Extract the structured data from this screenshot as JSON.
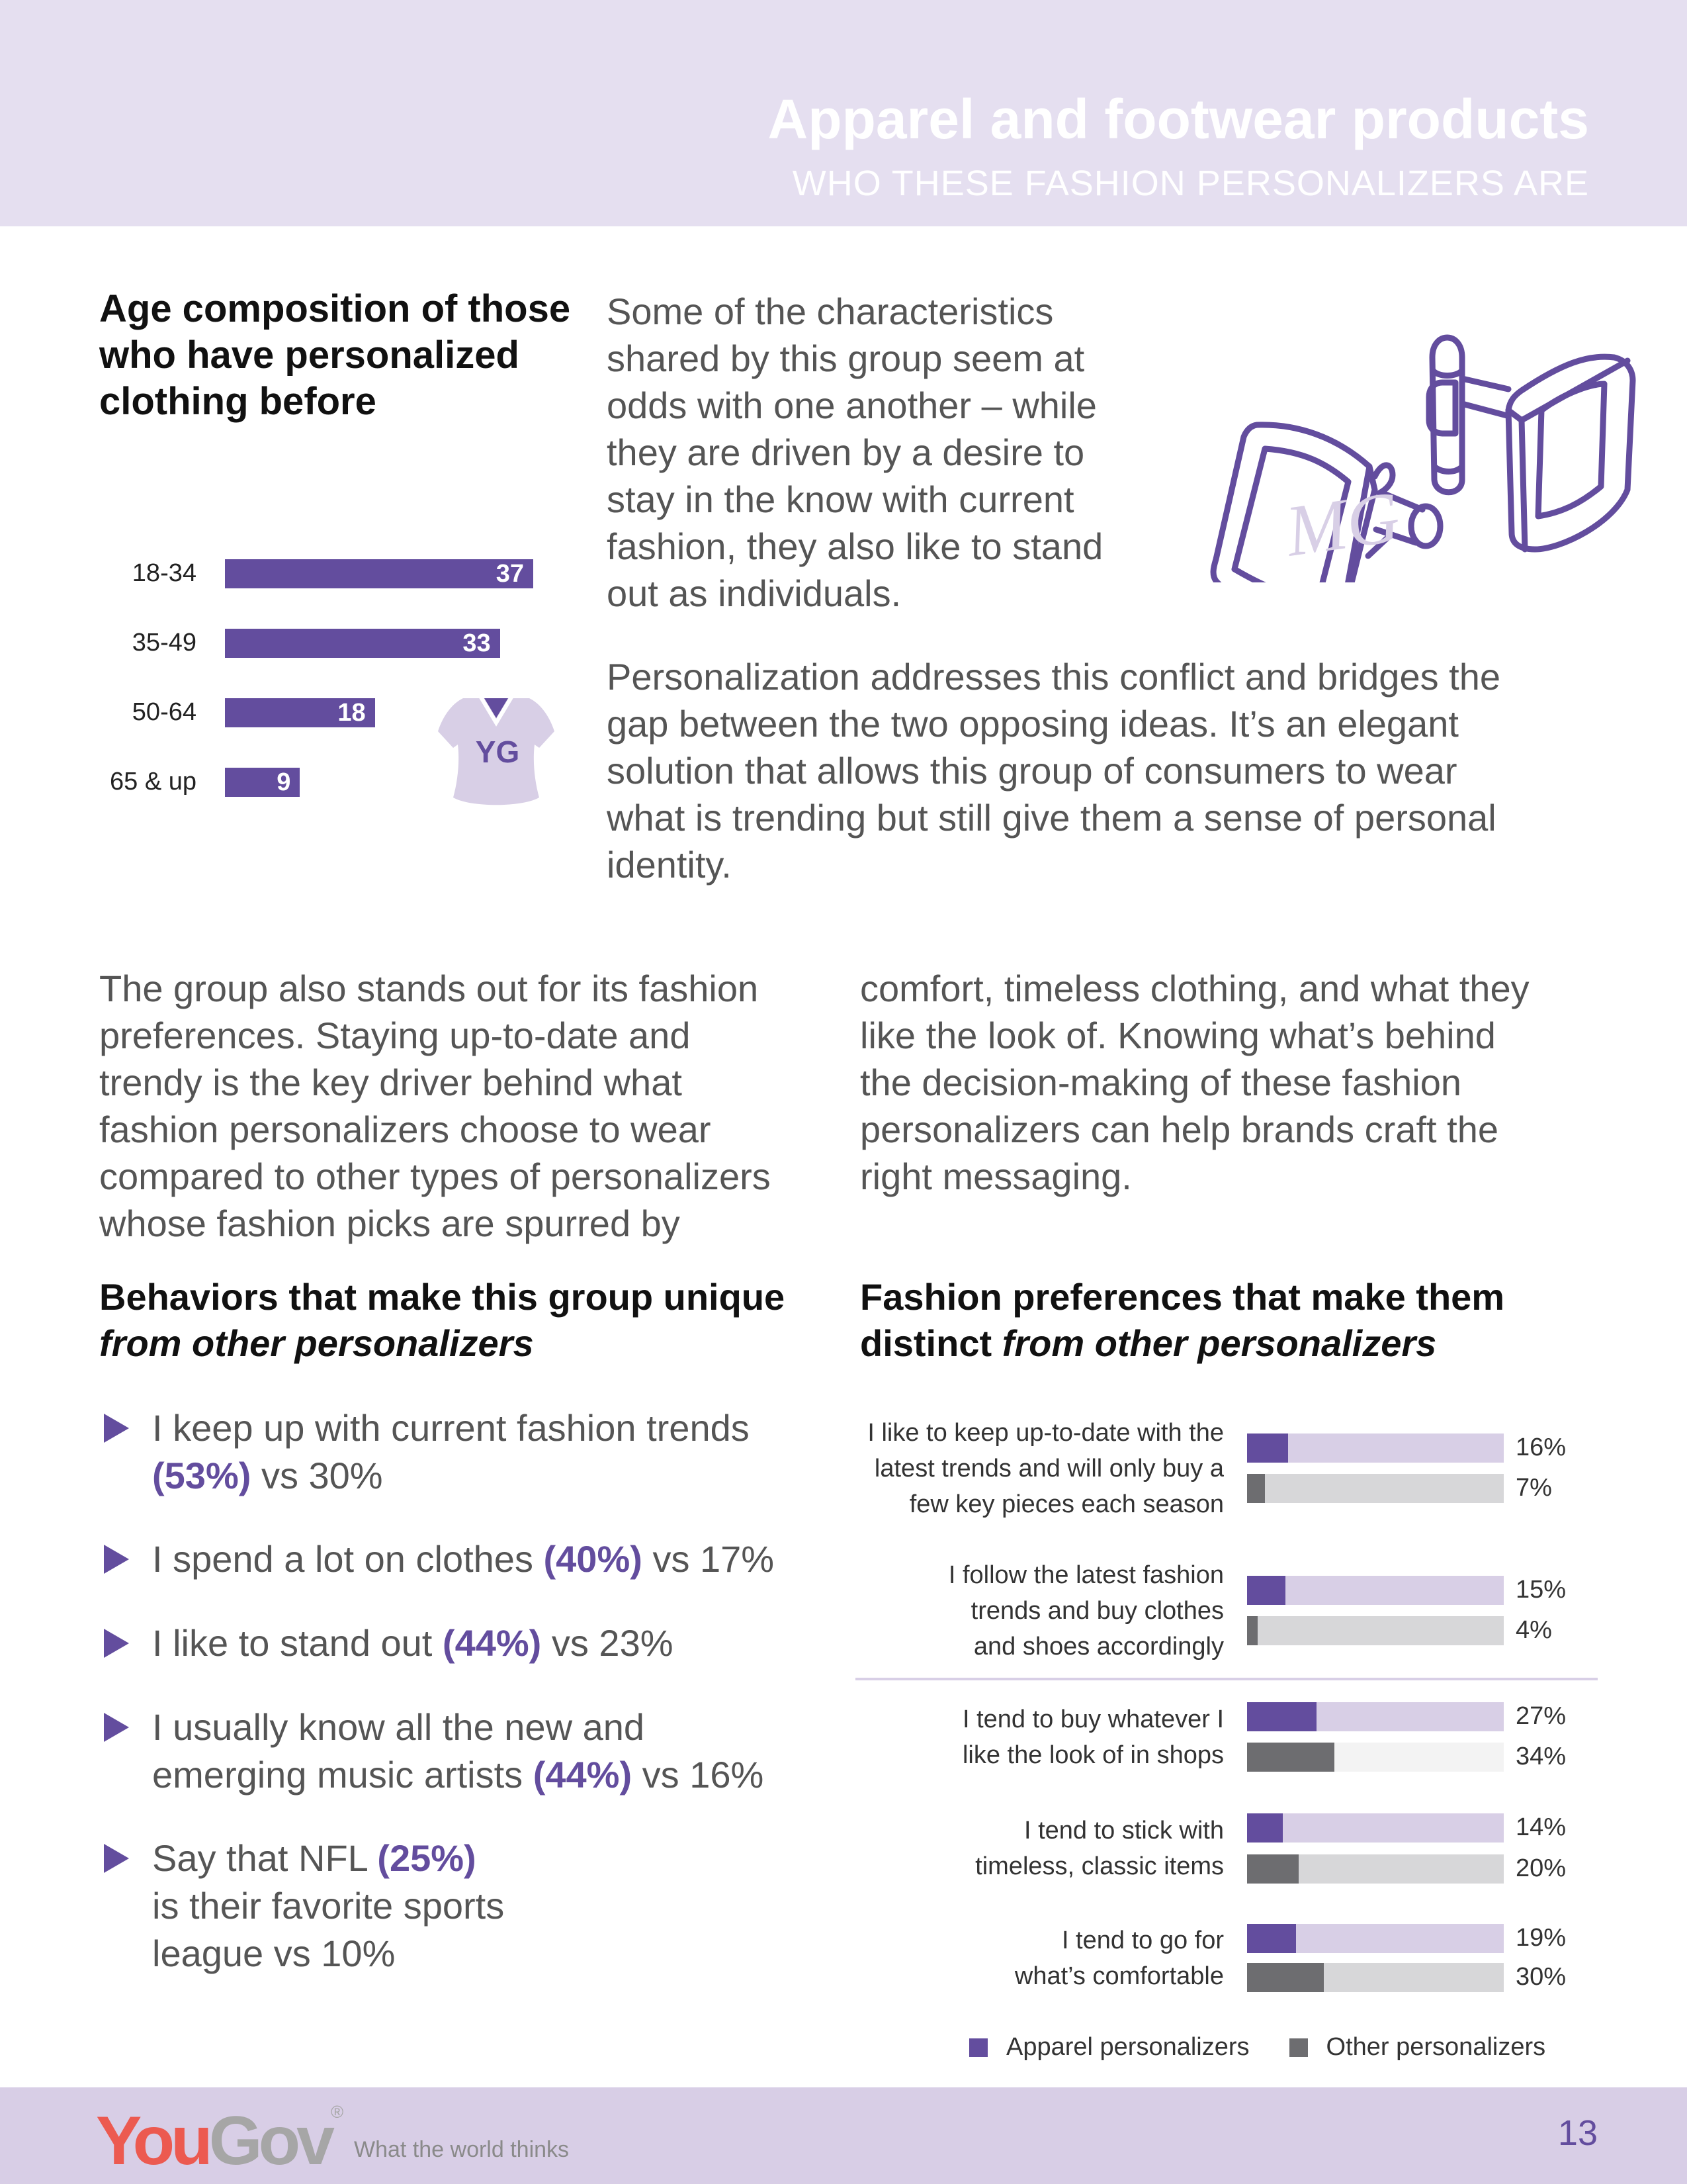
{
  "header": {
    "title": "Apparel and footwear products",
    "subtitle": "WHO THESE FASHION PERSONALIZERS ARE"
  },
  "age_heading": [
    "Age composition of those",
    "who have personalized",
    "clothing before"
  ],
  "intro_paragraph": [
    "Some of the characteristics",
    "shared by this group seem at",
    "odds with one another – while",
    "they are driven by a desire to",
    "stay in the know with current",
    "fashion, they also like to stand",
    "out as individuals."
  ],
  "second_paragraph": [
    "Personalization addresses this conflict and bridges the",
    "gap between the two opposing ideas. It’s an elegant",
    "solution that allows this group of consumers to wear",
    "what is trending but still give them a sense of personal",
    "identity."
  ],
  "left_column": [
    "The group also stands out for its fashion",
    "preferences. Staying up-to-date and",
    "trendy is the key driver behind what",
    "fashion personalizers choose to wear",
    "compared to other types of personalizers",
    "whose fashion picks are spurred by"
  ],
  "right_column": [
    "comfort, timeless clothing, and what they",
    "like the look of. Knowing what’s behind",
    "the decision-making of these fashion",
    "personalizers can help brands craft the",
    "right messaging."
  ],
  "behaviors_heading": {
    "line1": "Behaviors that make this group unique",
    "line2": "from other personalizers"
  },
  "preferences_heading": {
    "line1": "Fashion preferences that make them",
    "line2a": "distinct ",
    "line2b": "from other personalizers"
  },
  "bullets": [
    [
      [
        {
          "t": "I keep up with current fashion trends"
        }
      ],
      [
        {
          "t": "(53%)",
          "e": true
        },
        {
          "t": " vs 30%"
        }
      ]
    ],
    [
      [
        {
          "t": "I spend a lot on clothes "
        },
        {
          "t": "(40%)",
          "e": true
        },
        {
          "t": " vs 17%"
        }
      ]
    ],
    [
      [
        {
          "t": "I like to stand out "
        },
        {
          "t": "(44%)",
          "e": true
        },
        {
          "t": " vs 23%"
        }
      ]
    ],
    [
      [
        {
          "t": "I usually know all the new and"
        }
      ],
      [
        {
          "t": "emerging music artists "
        },
        {
          "t": "(44%)",
          "e": true
        },
        {
          "t": " vs 16%"
        }
      ]
    ],
    [
      [
        {
          "t": "Say that NFL "
        },
        {
          "t": "(25%)",
          "e": true
        }
      ],
      [
        {
          "t": "is their favorite sports"
        }
      ],
      [
        {
          "t": "league vs 10%"
        }
      ]
    ]
  ],
  "tshirt_text": "YG",
  "cufflink_monogram": "MG",
  "colors": {
    "purple": "#634d9e",
    "light_purple": "#d8cfe6",
    "dark_gray": "#6d6d70",
    "light_gray": "#d7d7d9",
    "header_bg": "#e5dff0",
    "footer_bg": "#d8cee6",
    "logo_red": "#ec5a50",
    "logo_gray": "#a6a6a6"
  },
  "chart_data": [
    {
      "type": "bar",
      "orientation": "horizontal",
      "categories": [
        "18-34",
        "35-49",
        "50-64",
        "65 & up"
      ],
      "values": [
        37,
        33,
        18,
        9
      ],
      "data_labels": true
    },
    {
      "type": "bar",
      "orientation": "horizontal",
      "xlim": [
        0,
        100
      ],
      "categories": [
        [
          "I like to keep up-to-date with the",
          "latest trends and will only buy a",
          "few key pieces each season"
        ],
        [
          "I follow the latest fashion",
          "trends and buy clothes",
          "and shoes accordingly"
        ],
        [
          "I tend to buy whatever I",
          "like the look of in shops"
        ],
        [
          "I tend to stick with",
          "timeless, classic items"
        ],
        [
          "I tend to go for",
          "what’s comfortable"
        ]
      ],
      "series": [
        {
          "name": "Apparel personalizers",
          "color": "#634d9e",
          "values": [
            16,
            15,
            27,
            14,
            19
          ],
          "labels": [
            "16%",
            "15%",
            "27%",
            "14%",
            "19%"
          ]
        },
        {
          "name": "Other personalizers",
          "color": "#6d6d70",
          "values": [
            7,
            4,
            34,
            20,
            30
          ],
          "labels": [
            "7%",
            "4%",
            "34%",
            "20%",
            "30%"
          ]
        }
      ],
      "legend": "bottom"
    }
  ],
  "footer": {
    "logo_you": "You",
    "logo_gov": "Gov",
    "logo_reg": "®",
    "tagline": "What the world thinks",
    "page_number": "13"
  }
}
